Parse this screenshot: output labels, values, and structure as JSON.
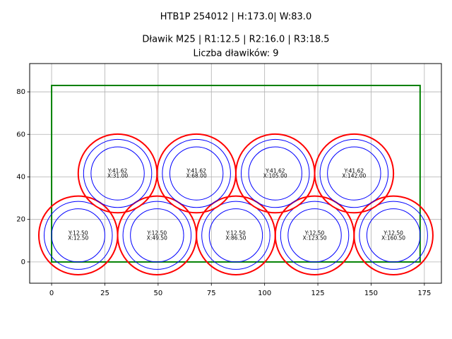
{
  "chart_data": {
    "type": "circles",
    "title": "HTB1P 254012 | H:173.0| W:83.0",
    "subtitle": "Dławik M25 | R1:12.5 | R2:16.0 | R3:18.5",
    "subtitle2": "Liczba dławików: 9",
    "xlim": [
      -10.3,
      183.0
    ],
    "ylim": [
      -10.0,
      93.3
    ],
    "xticks": [
      0,
      25,
      50,
      75,
      100,
      125,
      150,
      175
    ],
    "yticks": [
      0,
      20,
      40,
      60,
      80
    ],
    "grid": true,
    "rect": {
      "width": 173,
      "height": 83,
      "color": "#008000"
    },
    "radii": [
      12.5,
      16.0,
      18.5
    ],
    "radius_colors": [
      "#0000ff",
      "#0000ff",
      "#ff0000"
    ],
    "centers_x": [
      12.5,
      49.5,
      86.5,
      123.5,
      160.5,
      31.0,
      68.0,
      105.0,
      142.0
    ],
    "centers_y": [
      12.5,
      12.5,
      12.5,
      12.5,
      12.5,
      41.62,
      41.62,
      41.62,
      41.62
    ],
    "x_labels": [
      "X:12.50",
      "X:49.50",
      "X:86.50",
      "X:123.50",
      "X:160.50",
      "X:31.00",
      "X:68.00",
      "X:105.00",
      "X:142.00"
    ],
    "y_labels": [
      "Y:12.50",
      "Y:12.50",
      "Y:12.50",
      "Y:12.50",
      "Y:12.50",
      "Y:41.62",
      "Y:41.62",
      "Y:41.62",
      "Y:41.62"
    ]
  }
}
